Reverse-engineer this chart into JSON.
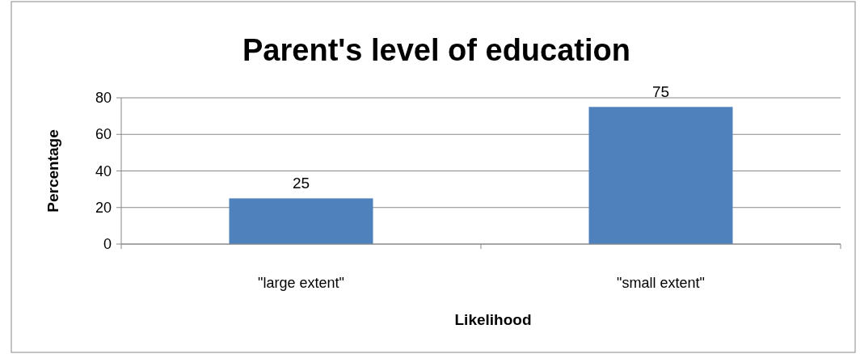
{
  "chart_data": {
    "type": "bar",
    "title": "Parent's level of education",
    "xlabel": "Likelihood",
    "ylabel": "Percentage",
    "categories": [
      "\"large extent\"",
      "\"small extent\""
    ],
    "values": [
      25,
      75
    ],
    "color": "#4f81bd",
    "ylim": [
      0,
      80
    ],
    "yticks": [
      0,
      20,
      40,
      60,
      80
    ],
    "grid": "y",
    "data_labels": true
  }
}
